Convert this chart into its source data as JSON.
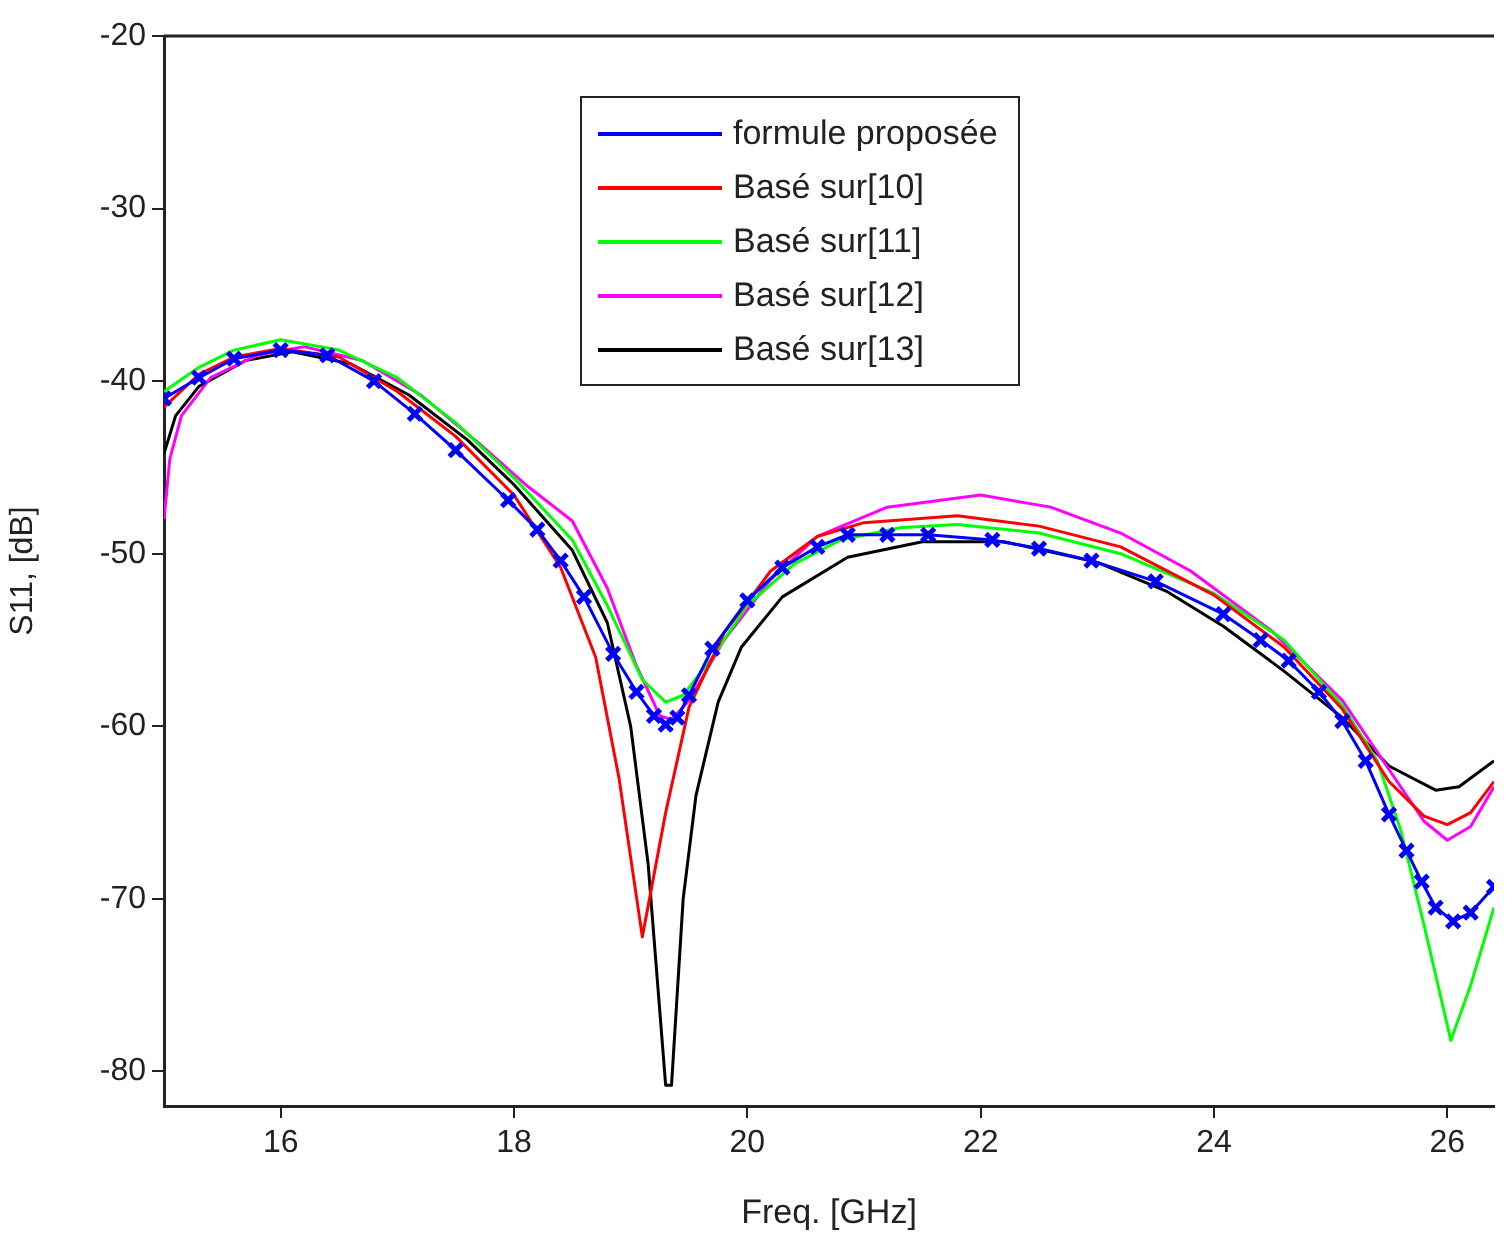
{
  "chart_data": {
    "type": "line",
    "xlabel": "Freq. [GHz]",
    "ylabel": "S11, [dB]",
    "xlim": [
      15,
      26.4
    ],
    "ylim": [
      -82,
      -20
    ],
    "xticks": [
      16,
      18,
      20,
      22,
      24,
      26
    ],
    "yticks": [
      -80,
      -70,
      -60,
      -50,
      -40,
      -30,
      -20
    ],
    "grid": false,
    "legend": "top",
    "line_style": "solid",
    "series": [
      {
        "name": "formule proposée",
        "color": "#0000ff",
        "marker": "cross",
        "x": [
          15,
          15.3,
          15.6,
          16,
          16.4,
          16.8,
          17.15,
          17.5,
          17.95,
          18.2,
          18.4,
          18.6,
          18.85,
          19.05,
          19.2,
          19.3,
          19.4,
          19.5,
          19.7,
          20,
          20.3,
          20.6,
          20.86,
          21.2,
          21.55,
          22.1,
          22.5,
          22.95,
          23.5,
          24.08,
          24.4,
          24.64,
          24.9,
          25.1,
          25.3,
          25.5,
          25.65,
          25.78,
          25.9,
          26.05,
          26.2,
          26.4
        ],
        "values": [
          -41,
          -39.8,
          -38.7,
          -38.2,
          -38.5,
          -40,
          -41.9,
          -44,
          -46.9,
          -48.6,
          -50.4,
          -52.5,
          -55.8,
          -58,
          -59.4,
          -59.9,
          -59.5,
          -58.2,
          -55.5,
          -52.7,
          -50.8,
          -49.6,
          -48.9,
          -48.9,
          -48.9,
          -49.2,
          -49.7,
          -50.4,
          -51.6,
          -53.5,
          -55,
          -56.2,
          -58,
          -59.7,
          -62,
          -65.1,
          -67.2,
          -69,
          -70.5,
          -71.3,
          -70.8,
          -69.3
        ]
      },
      {
        "name": "Basé sur[10]",
        "color": "#ff0000",
        "marker": "none",
        "x": [
          15,
          15.3,
          15.6,
          16,
          16.5,
          17,
          17.5,
          18,
          18.4,
          18.7,
          18.9,
          19.1,
          19.3,
          19.5,
          19.8,
          20.2,
          20.6,
          21,
          21.8,
          22.5,
          23.2,
          24,
          24.6,
          25.1,
          25.5,
          25.8,
          26,
          26.2,
          26.4
        ],
        "values": [
          -41.5,
          -39.6,
          -38.6,
          -38.1,
          -38.6,
          -40.6,
          -43.2,
          -46.6,
          -50.8,
          -56,
          -63,
          -72.2,
          -65,
          -58.9,
          -54.6,
          -51,
          -49,
          -48.2,
          -47.8,
          -48.4,
          -49.6,
          -52.4,
          -55.4,
          -59,
          -63.2,
          -65.2,
          -65.7,
          -65,
          -63.2
        ]
      },
      {
        "name": "Basé sur[11]",
        "color": "#00ff00",
        "marker": "none",
        "x": [
          15,
          15.3,
          15.6,
          16,
          16.5,
          17,
          17.5,
          18,
          18.5,
          18.8,
          19.1,
          19.3,
          19.45,
          19.7,
          20,
          20.4,
          20.8,
          21.3,
          21.8,
          22.5,
          23.2,
          24,
          24.6,
          25.1,
          25.4,
          25.6,
          25.8,
          26.03,
          26.2,
          26.4
        ],
        "values": [
          -40.6,
          -39.2,
          -38.2,
          -37.6,
          -38.2,
          -39.8,
          -42.4,
          -45.6,
          -49.2,
          -53,
          -57.3,
          -58.6,
          -58.2,
          -56,
          -53,
          -50.6,
          -49.2,
          -48.5,
          -48.3,
          -48.8,
          -50,
          -52.3,
          -55,
          -58.8,
          -62,
          -66,
          -71.5,
          -78.2,
          -75,
          -70.5
        ]
      },
      {
        "name": "Basé sur[12]",
        "color": "#ff00ff",
        "marker": "none",
        "x": [
          15,
          15.05,
          15.15,
          15.4,
          15.8,
          16.2,
          16.7,
          17.2,
          17.7,
          18.1,
          18.5,
          18.8,
          19.05,
          19.25,
          19.35,
          19.5,
          19.8,
          20.2,
          20.6,
          21.2,
          22,
          22.6,
          23.2,
          23.8,
          24.5,
          25.1,
          25.5,
          25.8,
          26,
          26.2,
          26.4
        ],
        "values": [
          -48,
          -44.5,
          -42,
          -39.8,
          -38.5,
          -38,
          -38.8,
          -40.8,
          -43.6,
          -46,
          -48.1,
          -52,
          -56.5,
          -59.4,
          -59.6,
          -58.5,
          -55,
          -51.5,
          -49,
          -47.3,
          -46.6,
          -47.3,
          -48.8,
          -51,
          -54.5,
          -58.5,
          -62.5,
          -65.5,
          -66.6,
          -65.8,
          -63.5
        ]
      },
      {
        "name": "Basé sur[13]",
        "color": "#000000",
        "marker": "none",
        "x": [
          15,
          15.1,
          15.3,
          15.7,
          16.1,
          16.6,
          17.1,
          17.6,
          18,
          18.5,
          18.8,
          19,
          19.15,
          19.3,
          19.35,
          19.45,
          19.56,
          19.75,
          19.95,
          20.3,
          20.86,
          21.5,
          22.2,
          23,
          23.6,
          24.08,
          24.6,
          25.1,
          25.5,
          25.9,
          26.1,
          26.4
        ],
        "values": [
          -44.2,
          -42,
          -40.3,
          -38.8,
          -38.3,
          -39,
          -40.8,
          -43.4,
          -46,
          -49.8,
          -54,
          -60,
          -68,
          -80.8,
          -80.8,
          -70,
          -64,
          -58.6,
          -55.4,
          -52.5,
          -50.2,
          -49.3,
          -49.3,
          -50.5,
          -52.2,
          -54.2,
          -56.8,
          -59.5,
          -62.3,
          -63.7,
          -63.5,
          -62
        ]
      }
    ]
  }
}
